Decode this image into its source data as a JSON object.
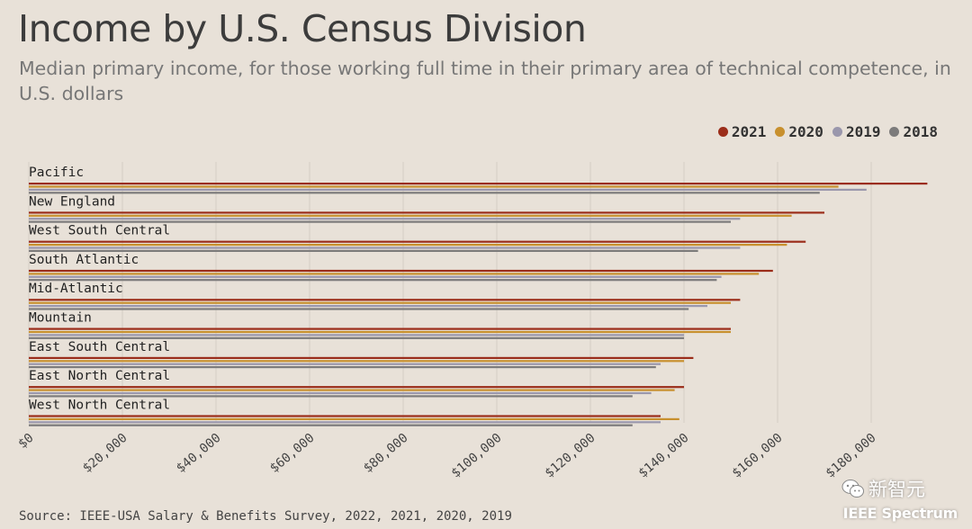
{
  "title": "Income by U.S. Census Division",
  "subtitle": "Median primary income, for those working full time in their primary area of technical competence, in U.S. dollars",
  "source": "Source: IEEE-USA Salary & Benefits Survey, 2022, 2021, 2020, 2019",
  "watermark": "新智元",
  "brand": "IEEE Spectrum",
  "colors": {
    "background": "#e8e1d8",
    "2021": "#9b2d1a",
    "2020": "#c8902e",
    "2019": "#9a97ac",
    "2018": "#7c7b7b",
    "grid": "#d4cdc4"
  },
  "legend": [
    {
      "label": "2021",
      "color": "#9b2d1a"
    },
    {
      "label": "2020",
      "color": "#c8902e"
    },
    {
      "label": "2019",
      "color": "#9a97ac"
    },
    {
      "label": "2018",
      "color": "#7c7b7b"
    }
  ],
  "chart_data": {
    "type": "bar",
    "orientation": "horizontal",
    "title": "Income by U.S. Census Division",
    "subtitle": "Median primary income, for those working full time in their primary area of technical competence, in U.S. dollars",
    "categories": [
      "Pacific",
      "New England",
      "West South Central",
      "South Atlantic",
      "Mid-Atlantic",
      "Mountain",
      "East South Central",
      "East North Central",
      "West North Central"
    ],
    "series": [
      {
        "name": "2021",
        "values": [
          192000,
          170000,
          166000,
          159000,
          152000,
          150000,
          142000,
          140000,
          135000
        ]
      },
      {
        "name": "2020",
        "values": [
          173000,
          163000,
          162000,
          156000,
          150000,
          150000,
          140000,
          138000,
          139000
        ]
      },
      {
        "name": "2019",
        "values": [
          179000,
          152000,
          152000,
          148000,
          145000,
          140000,
          135000,
          133000,
          135000
        ]
      },
      {
        "name": "2018",
        "values": [
          169000,
          150000,
          143000,
          147000,
          141000,
          140000,
          134000,
          129000,
          129000
        ]
      }
    ],
    "xlim": [
      0,
      190000
    ],
    "ticks": [
      "$0",
      "$20,000",
      "$40,000",
      "$60,000",
      "$80,000",
      "$100,000",
      "$120,000",
      "$140,000",
      "$160,000",
      "$180,000"
    ],
    "grid": true,
    "legend_position": "top-right"
  }
}
